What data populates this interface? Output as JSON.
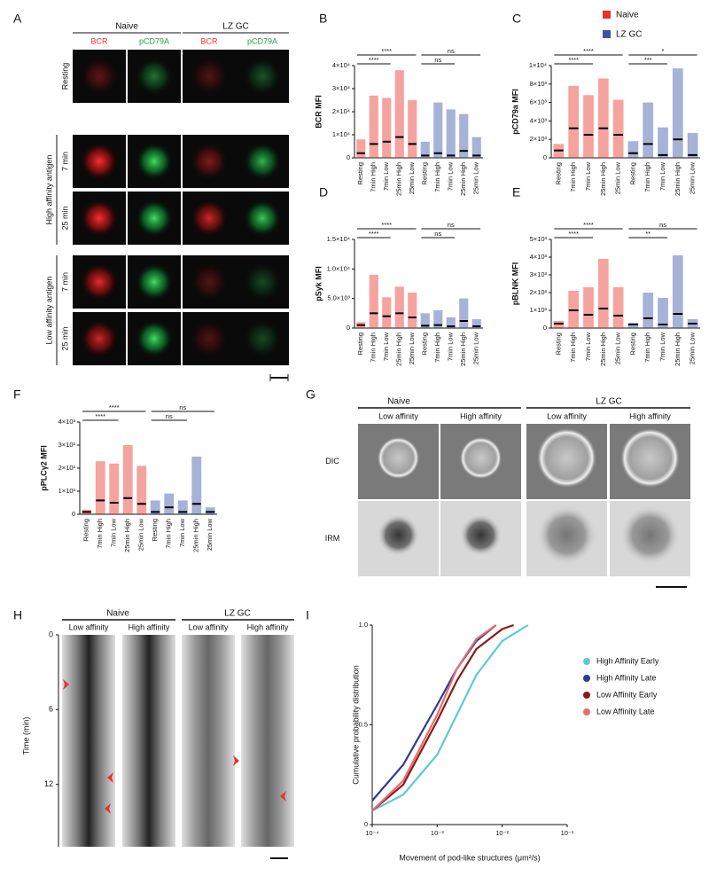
{
  "panel_labels": [
    "A",
    "B",
    "C",
    "D",
    "E",
    "F",
    "G",
    "H",
    "I"
  ],
  "legend": [
    {
      "name": "Naive",
      "color": "#e8322b"
    },
    {
      "name": "LZ GC",
      "color": "#3a55a4"
    }
  ],
  "panel_a": {
    "groups": [
      "Naive",
      "LZ GC"
    ],
    "channels": [
      "BCR",
      "pCD79A",
      "BCR",
      "pCD79A"
    ],
    "rows": [
      "Resting",
      "7 min",
      "25 min",
      "7 min",
      "25 min"
    ],
    "row_groups": [
      "High affinity antigen",
      "Low affinity antigen"
    ]
  },
  "panel_g": {
    "groups": [
      "Naive",
      "LZ GC"
    ],
    "columns": [
      "Low affinity",
      "High affinity",
      "Low affinity",
      "High affinity"
    ],
    "rows": [
      "DIC",
      "IRM"
    ]
  },
  "panel_h": {
    "groups": [
      "Naive",
      "LZ GC"
    ],
    "columns": [
      "Low affinity",
      "High affinity",
      "Low affinity",
      "High affinity"
    ],
    "ylabel": "Time (min)",
    "ylim": [
      0,
      17
    ],
    "yticks": [
      0,
      6,
      12
    ]
  },
  "chart_data": [
    {
      "type": "dotplot",
      "ylabel": "BCR MFI",
      "categories": [
        "Resting",
        "7min High",
        "7min Low",
        "25min High",
        "25min Low",
        "Resting",
        "7min High",
        "7min Low",
        "25min High",
        "25min Low"
      ],
      "values": [
        2000,
        6000,
        7000,
        9000,
        6000,
        1000,
        2000,
        1000,
        3000,
        1000
      ],
      "max": [
        8000,
        27000,
        26000,
        38000,
        25000,
        7000,
        24000,
        21000,
        19000,
        9000
      ],
      "colors": [
        "#e8322b",
        "#e8322b",
        "#e8322b",
        "#e8322b",
        "#e8322b",
        "#3a55a4",
        "#3a55a4",
        "#3a55a4",
        "#3a55a4",
        "#3a55a4"
      ],
      "ylim": [
        0,
        40000
      ],
      "yticks": [
        0,
        {
          "value": 10000,
          "label": "1×10⁴"
        },
        {
          "value": 20000,
          "label": "2×10⁴"
        },
        {
          "value": 30000,
          "label": "3×10⁴"
        },
        {
          "value": 40000,
          "label": "4×10⁴"
        }
      ],
      "comparisons": [
        {
          "label": "****",
          "from": 0,
          "to": 4
        },
        {
          "label": "****",
          "from": 0,
          "to": 2
        },
        {
          "label": "ns",
          "from": 5,
          "to": 9
        },
        {
          "label": "ns",
          "from": 5,
          "to": 7
        }
      ]
    },
    {
      "type": "dotplot",
      "ylabel": "pCD79a MFI",
      "categories": [
        "Resting",
        "7min High",
        "7min Low",
        "25min High",
        "25min Low",
        "Resting",
        "7min High",
        "7min Low",
        "25min High",
        "25min Low"
      ],
      "values": [
        800,
        3200,
        2500,
        3200,
        2500,
        500,
        1500,
        300,
        2000,
        300
      ],
      "max": [
        1500,
        7800,
        6800,
        8600,
        6300,
        1800,
        6000,
        3300,
        9700,
        2700
      ],
      "colors": [
        "#e8322b",
        "#e8322b",
        "#e8322b",
        "#e8322b",
        "#e8322b",
        "#3a55a4",
        "#3a55a4",
        "#3a55a4",
        "#3a55a4",
        "#3a55a4"
      ],
      "ylim": [
        0,
        10000
      ],
      "yticks": [
        0,
        {
          "value": 2000,
          "label": "2×10³"
        },
        {
          "value": 4000,
          "label": "4×10³"
        },
        {
          "value": 6000,
          "label": "6×10³"
        },
        {
          "value": 8000,
          "label": "8×10³"
        },
        {
          "value": 10000,
          "label": "1×10⁴"
        }
      ],
      "comparisons": [
        {
          "label": "****",
          "from": 0,
          "to": 4
        },
        {
          "label": "****",
          "from": 0,
          "to": 2
        },
        {
          "label": "*",
          "from": 5,
          "to": 9
        },
        {
          "label": "***",
          "from": 5,
          "to": 7
        }
      ]
    },
    {
      "type": "dotplot",
      "ylabel": "pSyk MFI",
      "categories": [
        "Resting",
        "7min High",
        "7min Low",
        "25min High",
        "25min Low",
        "Resting",
        "7min High",
        "7min Low",
        "25min High",
        "25min Low"
      ],
      "values": [
        500,
        2500,
        2000,
        2500,
        1800,
        400,
        500,
        300,
        1200,
        300
      ],
      "max": [
        1000,
        9000,
        5200,
        7000,
        6000,
        2500,
        3000,
        1800,
        5000,
        1500
      ],
      "colors": [
        "#e8322b",
        "#e8322b",
        "#e8322b",
        "#e8322b",
        "#e8322b",
        "#3a55a4",
        "#3a55a4",
        "#3a55a4",
        "#3a55a4",
        "#3a55a4"
      ],
      "ylim": [
        0,
        15000
      ],
      "yticks": [
        0,
        {
          "value": 5000,
          "label": "5.0×10³"
        },
        {
          "value": 10000,
          "label": "1.0×10⁴"
        },
        {
          "value": 15000,
          "label": "1.5×10⁴"
        }
      ],
      "comparisons": [
        {
          "label": "****",
          "from": 0,
          "to": 4
        },
        {
          "label": "****",
          "from": 0,
          "to": 2
        },
        {
          "label": "ns",
          "from": 5,
          "to": 9
        },
        {
          "label": "ns",
          "from": 5,
          "to": 7
        }
      ]
    },
    {
      "type": "dotplot",
      "ylabel": "pBLNK MFI",
      "categories": [
        "Resting",
        "7min High",
        "7min Low",
        "25min High",
        "25min Low",
        "Resting",
        "7min High",
        "7min Low",
        "25min High",
        "25min Low"
      ],
      "values": [
        250,
        1000,
        750,
        1100,
        700,
        200,
        550,
        200,
        800,
        250
      ],
      "max": [
        400,
        2100,
        2300,
        3900,
        2300,
        300,
        2000,
        1700,
        4100,
        500
      ],
      "colors": [
        "#e8322b",
        "#e8322b",
        "#e8322b",
        "#e8322b",
        "#e8322b",
        "#3a55a4",
        "#3a55a4",
        "#3a55a4",
        "#3a55a4",
        "#3a55a4"
      ],
      "ylim": [
        0,
        5000
      ],
      "yticks": [
        0,
        {
          "value": 1000,
          "label": "1×10³"
        },
        {
          "value": 2000,
          "label": "2×10³"
        },
        {
          "value": 3000,
          "label": "3×10³"
        },
        {
          "value": 4000,
          "label": "4×10³"
        },
        {
          "value": 5000,
          "label": "5×10³"
        }
      ],
      "comparisons": [
        {
          "label": "****",
          "from": 0,
          "to": 4
        },
        {
          "label": "****",
          "from": 0,
          "to": 2
        },
        {
          "label": "ns",
          "from": 5,
          "to": 9
        },
        {
          "label": "**",
          "from": 5,
          "to": 7
        }
      ]
    },
    {
      "type": "dotplot",
      "ylabel": "pPLCγ2 MFI",
      "categories": [
        "Resting",
        "7min High",
        "7min Low",
        "25min High",
        "25min Low",
        "Resting",
        "7min High",
        "7min Low",
        "25min High",
        "25min Low"
      ],
      "values": [
        100,
        600,
        500,
        700,
        450,
        100,
        300,
        100,
        450,
        100
      ],
      "max": [
        200,
        2300,
        2200,
        3000,
        2100,
        600,
        900,
        600,
        2500,
        300
      ],
      "colors": [
        "#e8322b",
        "#e8322b",
        "#e8322b",
        "#e8322b",
        "#e8322b",
        "#3a55a4",
        "#3a55a4",
        "#3a55a4",
        "#3a55a4",
        "#3a55a4"
      ],
      "ylim": [
        0,
        4000
      ],
      "yticks": [
        0,
        {
          "value": 1000,
          "label": "1×10³"
        },
        {
          "value": 2000,
          "label": "2×10³"
        },
        {
          "value": 3000,
          "label": "3×10³"
        },
        {
          "value": 4000,
          "label": "4×10³"
        }
      ],
      "comparisons": [
        {
          "label": "****",
          "from": 0,
          "to": 4
        },
        {
          "label": "****",
          "from": 0,
          "to": 2
        },
        {
          "label": "ns",
          "from": 5,
          "to": 9
        },
        {
          "label": "ns",
          "from": 5,
          "to": 7
        }
      ]
    },
    {
      "type": "line",
      "xlabel": "Movement of pod-like structures (μm²/s)",
      "ylabel": "Cumulative probability distribution",
      "log_x": true,
      "xlim": [
        0.0001,
        0.1
      ],
      "xticks": [
        {
          "value": 0.0001,
          "label": "10⁻⁴"
        },
        {
          "value": 0.001,
          "label": "10⁻³"
        },
        {
          "value": 0.01,
          "label": "10⁻²"
        },
        {
          "value": 0.1,
          "label": "10⁻¹"
        }
      ],
      "ylim": [
        0,
        1
      ],
      "yticks": [
        0,
        0.5,
        {
          "value": 1,
          "label": "1.0"
        }
      ],
      "series": [
        {
          "name": "High Affinity Early",
          "color": "#5cc8dc",
          "x": [
            0.0001,
            0.0003,
            0.001,
            0.002,
            0.004,
            0.01,
            0.025
          ],
          "values": [
            0.07,
            0.15,
            0.35,
            0.55,
            0.75,
            0.92,
            1
          ]
        },
        {
          "name": "High Affinity Late",
          "color": "#2b3d90",
          "x": [
            0.0001,
            0.0003,
            0.001,
            0.002,
            0.004,
            0.008
          ],
          "values": [
            0.12,
            0.3,
            0.6,
            0.78,
            0.92,
            1
          ]
        },
        {
          "name": "Low Affinity Early",
          "color": "#8b1a1a",
          "x": [
            0.0001,
            0.0003,
            0.001,
            0.002,
            0.004,
            0.01,
            0.015
          ],
          "values": [
            0.07,
            0.2,
            0.52,
            0.72,
            0.88,
            0.98,
            1
          ]
        },
        {
          "name": "Low Affinity Late",
          "color": "#ea6b6b",
          "x": [
            0.0001,
            0.0003,
            0.001,
            0.002,
            0.004,
            0.008
          ],
          "values": [
            0.07,
            0.22,
            0.55,
            0.78,
            0.93,
            1
          ]
        }
      ]
    }
  ]
}
